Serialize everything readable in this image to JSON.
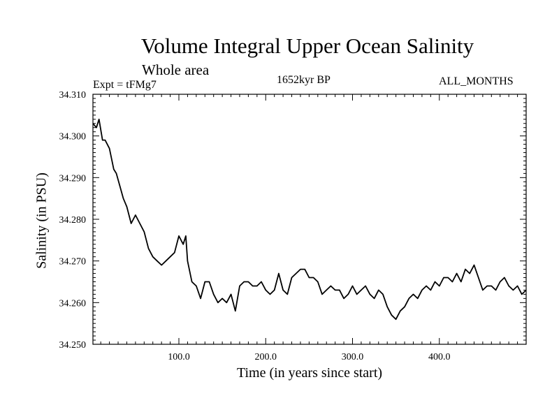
{
  "chart_data": {
    "type": "line",
    "title": "Volume Integral Upper Ocean Salinity",
    "subtitle": "Whole area",
    "annotations": {
      "experiment": "Expt = tFMg7",
      "period": "1652kyr BP",
      "months": "ALL_MONTHS"
    },
    "xlabel": "Time (in years since start)",
    "ylabel": "Salinity (in PSU)",
    "xlim": [
      1,
      500
    ],
    "ylim": [
      34.25,
      34.31
    ],
    "x_ticks": [
      100,
      200,
      300,
      400
    ],
    "x_tick_labels": [
      "100.0",
      "200.0",
      "300.0",
      "400.0"
    ],
    "y_ticks": [
      34.25,
      34.26,
      34.27,
      34.28,
      34.29,
      34.3,
      34.31
    ],
    "y_tick_labels": [
      "34.250",
      "34.260",
      "34.270",
      "34.280",
      "34.290",
      "34.300",
      "34.310"
    ],
    "series": [
      {
        "name": "Salinity",
        "x": [
          1,
          5,
          8,
          12,
          15,
          20,
          25,
          28,
          32,
          36,
          40,
          45,
          50,
          55,
          60,
          65,
          70,
          75,
          80,
          85,
          90,
          95,
          100,
          105,
          108,
          110,
          115,
          120,
          125,
          130,
          135,
          140,
          145,
          150,
          155,
          160,
          165,
          170,
          175,
          180,
          185,
          190,
          195,
          200,
          205,
          210,
          215,
          220,
          225,
          230,
          235,
          240,
          245,
          250,
          255,
          260,
          265,
          270,
          275,
          280,
          285,
          290,
          295,
          300,
          305,
          310,
          315,
          320,
          325,
          330,
          335,
          340,
          345,
          350,
          355,
          360,
          365,
          370,
          375,
          380,
          385,
          390,
          395,
          400,
          405,
          410,
          415,
          420,
          425,
          430,
          435,
          440,
          445,
          450,
          455,
          460,
          465,
          470,
          475,
          480,
          485,
          490,
          495,
          500
        ],
        "values": [
          34.303,
          34.302,
          34.304,
          34.299,
          34.299,
          34.297,
          34.292,
          34.291,
          34.288,
          34.285,
          34.283,
          34.279,
          34.281,
          34.279,
          34.277,
          34.273,
          34.271,
          34.27,
          34.269,
          34.27,
          34.271,
          34.272,
          34.276,
          34.274,
          34.276,
          34.27,
          34.265,
          34.264,
          34.261,
          34.265,
          34.265,
          34.262,
          34.26,
          34.261,
          34.26,
          34.262,
          34.258,
          34.264,
          34.265,
          34.265,
          34.264,
          34.264,
          34.265,
          34.263,
          34.262,
          34.263,
          34.267,
          34.263,
          34.262,
          34.266,
          34.267,
          34.268,
          34.268,
          34.266,
          34.266,
          34.265,
          34.262,
          34.263,
          34.264,
          34.263,
          34.263,
          34.261,
          34.262,
          34.264,
          34.262,
          34.263,
          34.264,
          34.262,
          34.261,
          34.263,
          34.262,
          34.259,
          34.257,
          34.256,
          34.258,
          34.259,
          34.261,
          34.262,
          34.261,
          34.263,
          34.264,
          34.263,
          34.265,
          34.264,
          34.266,
          34.266,
          34.265,
          34.267,
          34.265,
          34.268,
          34.267,
          34.269,
          34.266,
          34.263,
          34.264,
          34.264,
          34.263,
          34.265,
          34.266,
          34.264,
          34.263,
          34.264,
          34.262,
          34.263
        ]
      }
    ]
  }
}
